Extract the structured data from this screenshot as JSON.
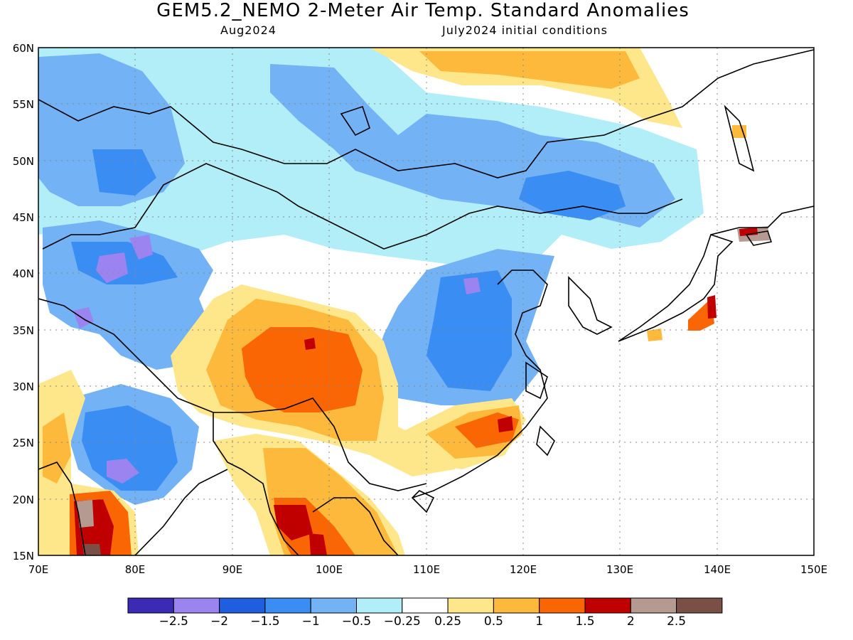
{
  "header": {
    "title": "GEM5.2_NEMO 2-Meter Air Temp. Standard Anomalies",
    "valid_month": "Aug2024",
    "init": "July2024 initial conditions"
  },
  "axes": {
    "lon_ticks": [
      "70E",
      "80E",
      "90E",
      "100E",
      "110E",
      "120E",
      "130E",
      "140E",
      "150E"
    ],
    "lat_ticks": [
      "60N",
      "55N",
      "50N",
      "45N",
      "40N",
      "35N",
      "30N",
      "25N",
      "20N",
      "15N"
    ],
    "lon_range": [
      70,
      150
    ],
    "lat_range": [
      15,
      60
    ]
  },
  "colorbar": {
    "colors": [
      "#3a2ab4",
      "#9b84f0",
      "#1f5ee0",
      "#3a8df2",
      "#72b2f5",
      "#b2eef8",
      "#ffffff",
      "#fee68a",
      "#fdb93b",
      "#fb6604",
      "#c00000",
      "#b49a90",
      "#7a5046"
    ],
    "labels": [
      "-2.5",
      "-2",
      "-1.5",
      "-1",
      "-0.5",
      "-0.25",
      "0.25",
      "0.5",
      "1",
      "1.5",
      "2",
      "2.5"
    ]
  }
}
